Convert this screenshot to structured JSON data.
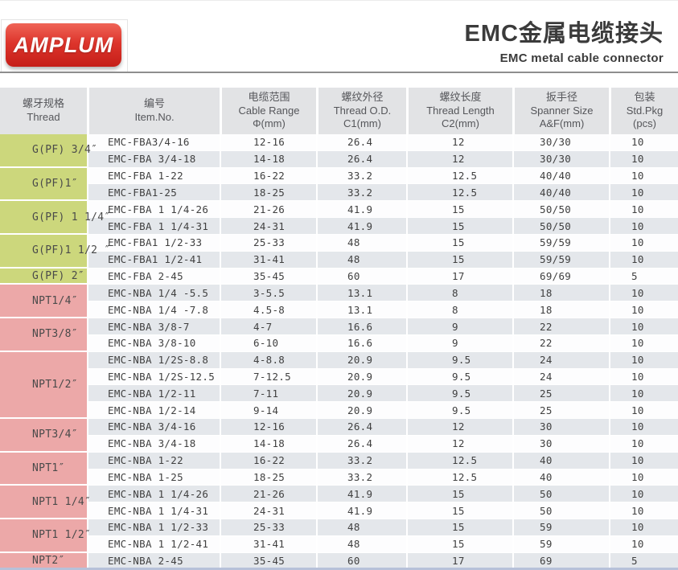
{
  "page": {
    "logo_text": "AMPLUM",
    "title_zh": "EMC金属电缆接头",
    "title_en": "EMC metal cable connector"
  },
  "colors": {
    "logo_red": "#d5271f",
    "g_thread_bg": "#ccd77c",
    "npt_thread_bg": "#eca8a8",
    "header_bg": "#e2e3e5",
    "zebra_gray": "#e4e7eb",
    "divider_gray": "#8e8e8e",
    "bottom_strip_blue": "#b7c1d9"
  },
  "table": {
    "headers": [
      {
        "zh": "螺牙规格",
        "en": "Thread",
        "sub": ""
      },
      {
        "zh": "编号",
        "en": "Item.No.",
        "sub": ""
      },
      {
        "zh": "电缆范围",
        "en": "Cable Range",
        "sub": "Φ(mm)"
      },
      {
        "zh": "螺纹外径",
        "en": "Thread O.D.",
        "sub": "C1(mm)"
      },
      {
        "zh": "螺纹长度",
        "en": "Thread Length",
        "sub": "C2(mm)"
      },
      {
        "zh": "扳手径",
        "en": "Spanner Size",
        "sub": "A&F(mm)"
      },
      {
        "zh": "包装",
        "en": "Std.Pkg",
        "sub": "(pcs)"
      }
    ],
    "groups": [
      {
        "thread": "G(PF) 3/4″",
        "type": "g",
        "rows": [
          {
            "item": "EMC-FBA3/4-16",
            "range": "12-16",
            "od": "26.4",
            "len": "12",
            "spanner": "30/30",
            "pkg": "10"
          },
          {
            "item": "EMC-FBA 3/4-18",
            "range": "14-18",
            "od": "26.4",
            "len": "12",
            "spanner": "30/30",
            "pkg": "10"
          }
        ]
      },
      {
        "thread": "G(PF)1″",
        "type": "g",
        "rows": [
          {
            "item": "EMC-FBA 1-22",
            "range": "16-22",
            "od": "33.2",
            "len": "12.5",
            "spanner": "40/40",
            "pkg": "10"
          },
          {
            "item": "EMC-FBA1-25",
            "range": "18-25",
            "od": "33.2",
            "len": "12.5",
            "spanner": "40/40",
            "pkg": "10"
          }
        ]
      },
      {
        "thread": "G(PF) 1 1/4″",
        "type": "g",
        "rows": [
          {
            "item": "EMC-FBA 1 1/4-26",
            "range": "21-26",
            "od": "41.9",
            "len": "15",
            "spanner": "50/50",
            "pkg": "10"
          },
          {
            "item": "EMC-FBA 1 1/4-31",
            "range": "24-31",
            "od": "41.9",
            "len": "15",
            "spanner": "50/50",
            "pkg": "10"
          }
        ]
      },
      {
        "thread": "G(PF)1 1/2 ″",
        "type": "g",
        "rows": [
          {
            "item": "EMC-FBA1 1/2-33",
            "range": "25-33",
            "od": "48",
            "len": "15",
            "spanner": "59/59",
            "pkg": "10"
          },
          {
            "item": "EMC-FBA1 1/2-41",
            "range": "31-41",
            "od": "48",
            "len": "15",
            "spanner": "59/59",
            "pkg": "10"
          }
        ]
      },
      {
        "thread": "G(PF) 2″",
        "type": "g",
        "rows": [
          {
            "item": "EMC-FBA 2-45",
            "range": "35-45",
            "od": "60",
            "len": "17",
            "spanner": "69/69",
            "pkg": "5"
          }
        ]
      },
      {
        "thread": "NPT1/4″",
        "type": "npt",
        "rows": [
          {
            "item": "EMC-NBA 1/4 -5.5",
            "range": "3-5.5",
            "od": "13.1",
            "len": "8",
            "spanner": "18",
            "pkg": "10"
          },
          {
            "item": "EMC-NBA 1/4 -7.8",
            "range": "4.5-8",
            "od": "13.1",
            "len": "8",
            "spanner": "18",
            "pkg": "10"
          }
        ]
      },
      {
        "thread": "NPT3/8″",
        "type": "npt",
        "rows": [
          {
            "item": "EMC-NBA 3/8-7",
            "range": "4-7",
            "od": "16.6",
            "len": "9",
            "spanner": "22",
            "pkg": "10"
          },
          {
            "item": "EMC-NBA 3/8-10",
            "range": "6-10",
            "od": "16.6",
            "len": "9",
            "spanner": "22",
            "pkg": "10"
          }
        ]
      },
      {
        "thread": "NPT1/2″",
        "type": "npt",
        "rows": [
          {
            "item": "EMC-NBA 1/2S-8.8",
            "range": "4-8.8",
            "od": "20.9",
            "len": "9.5",
            "spanner": "24",
            "pkg": "10"
          },
          {
            "item": "EMC-NBA 1/2S-12.5",
            "range": "7-12.5",
            "od": "20.9",
            "len": "9.5",
            "spanner": "24",
            "pkg": "10"
          },
          {
            "item": "EMC-NBA 1/2-11",
            "range": "7-11",
            "od": "20.9",
            "len": "9.5",
            "spanner": "25",
            "pkg": "10"
          },
          {
            "item": "EMC-NBA 1/2-14",
            "range": "9-14",
            "od": "20.9",
            "len": "9.5",
            "spanner": "25",
            "pkg": "10"
          }
        ]
      },
      {
        "thread": "NPT3/4″",
        "type": "npt",
        "rows": [
          {
            "item": "EMC-NBA 3/4-16",
            "range": "12-16",
            "od": "26.4",
            "len": "12",
            "spanner": "30",
            "pkg": "10"
          },
          {
            "item": "EMC-NBA 3/4-18",
            "range": "14-18",
            "od": "26.4",
            "len": "12",
            "spanner": "30",
            "pkg": "10"
          }
        ]
      },
      {
        "thread": "NPT1″",
        "type": "npt",
        "rows": [
          {
            "item": "EMC-NBA 1-22",
            "range": "16-22",
            "od": "33.2",
            "len": "12.5",
            "spanner": "40",
            "pkg": "10"
          },
          {
            "item": "EMC-NBA 1-25",
            "range": "18-25",
            "od": "33.2",
            "len": "12.5",
            "spanner": "40",
            "pkg": "10"
          }
        ]
      },
      {
        "thread": "NPT1 1/4″",
        "type": "npt",
        "rows": [
          {
            "item": "EMC-NBA 1 1/4-26",
            "range": "21-26",
            "od": "41.9",
            "len": "15",
            "spanner": "50",
            "pkg": "10"
          },
          {
            "item": "EMC-NBA 1 1/4-31",
            "range": "24-31",
            "od": "41.9",
            "len": "15",
            "spanner": "50",
            "pkg": "10"
          }
        ]
      },
      {
        "thread": "NPT1 1/2″",
        "type": "npt",
        "rows": [
          {
            "item": "EMC-NBA 1 1/2-33",
            "range": "25-33",
            "od": "48",
            "len": "15",
            "spanner": "59",
            "pkg": "10"
          },
          {
            "item": "EMC-NBA 1 1/2-41",
            "range": "31-41",
            "od": "48",
            "len": "15",
            "spanner": "59",
            "pkg": "10"
          }
        ]
      },
      {
        "thread": "NPT2″",
        "type": "npt",
        "rows": [
          {
            "item": "EMC-NBA 2-45",
            "range": "35-45",
            "od": "60",
            "len": "17",
            "spanner": "69",
            "pkg": "5"
          }
        ]
      }
    ]
  }
}
